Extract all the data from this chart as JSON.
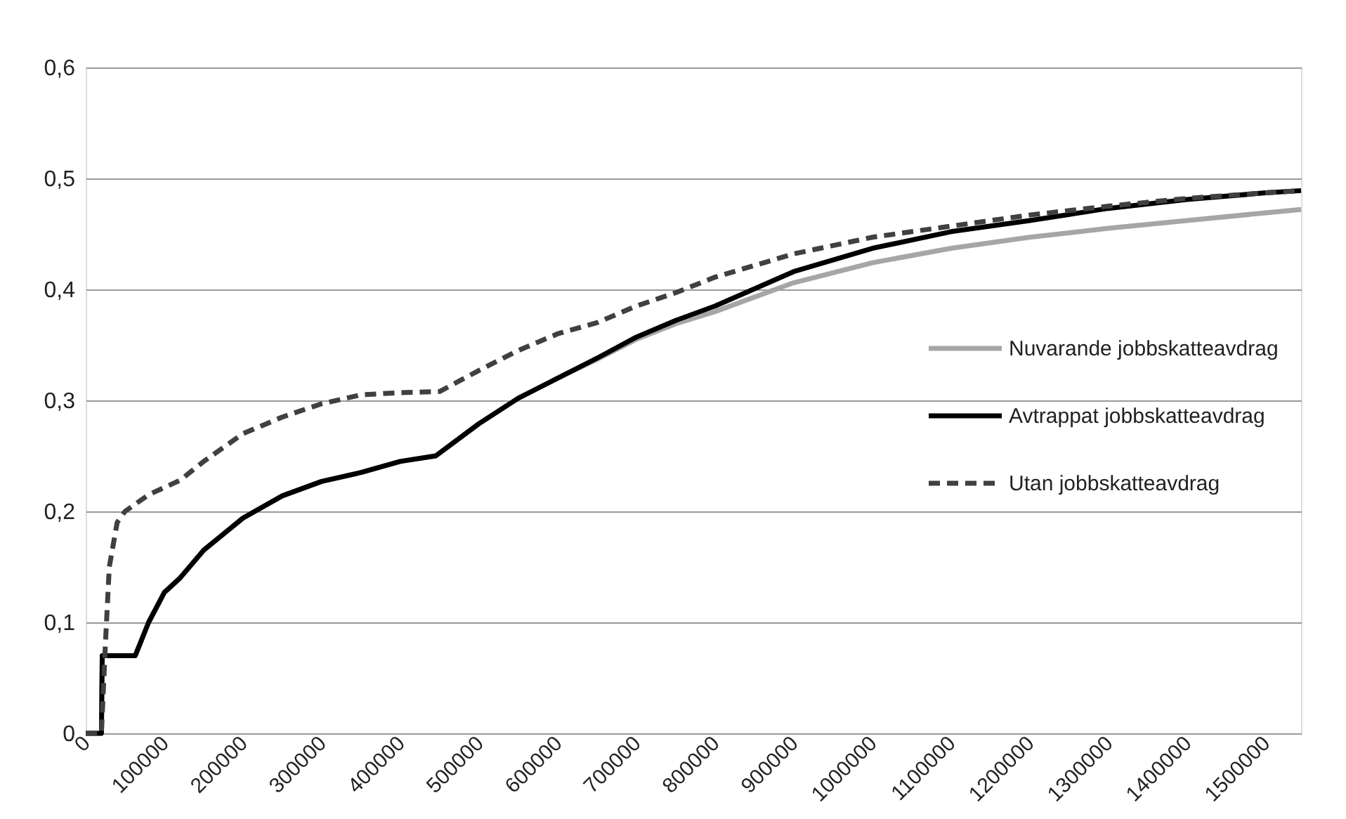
{
  "chart_data": {
    "type": "line",
    "xlim": [
      0,
      1545000
    ],
    "xticks": [
      0,
      100000,
      200000,
      300000,
      400000,
      500000,
      600000,
      700000,
      800000,
      900000,
      1000000,
      1100000,
      1200000,
      1300000,
      1400000,
      1500000
    ],
    "ylim": [
      0,
      0.6
    ],
    "yticks": [
      {
        "value": 0,
        "label": "0"
      },
      {
        "value": 0.1,
        "label": "0,1"
      },
      {
        "value": 0.2,
        "label": "0,2"
      },
      {
        "value": 0.3,
        "label": "0,3"
      },
      {
        "value": 0.4,
        "label": "0,4"
      },
      {
        "value": 0.5,
        "label": "0,5"
      },
      {
        "value": 0.6,
        "label": "0,6"
      }
    ],
    "grid": "y",
    "legend": "right",
    "marker": "none",
    "series": [
      {
        "name": "Nuvarande jobbskatteavdrag",
        "color": "#a6a6a6",
        "line_style": "solid",
        "x": [
          0,
          20000,
          21000,
          63000,
          80000,
          100000,
          120000,
          150000,
          200000,
          250000,
          300000,
          350000,
          400000,
          445000,
          500000,
          550000,
          600000,
          650000,
          700000,
          750000,
          800000,
          900000,
          1000000,
          1100000,
          1200000,
          1300000,
          1400000,
          1500000,
          1545000
        ],
        "values": [
          0,
          0,
          0.07,
          0.07,
          0.1,
          0.127,
          0.14,
          0.165,
          0.194,
          0.214,
          0.227,
          0.235,
          0.245,
          0.25,
          0.279,
          0.302,
          0.32,
          0.337,
          0.355,
          0.369,
          0.38,
          0.406,
          0.424,
          0.437,
          0.447,
          0.455,
          0.462,
          0.469,
          0.472
        ]
      },
      {
        "name": "Avtrappat jobbskatteavdrag",
        "color": "#000000",
        "line_style": "solid",
        "x": [
          0,
          20000,
          21000,
          63000,
          80000,
          100000,
          120000,
          150000,
          200000,
          250000,
          300000,
          350000,
          400000,
          445000,
          500000,
          550000,
          600000,
          650000,
          700000,
          750000,
          800000,
          900000,
          1000000,
          1100000,
          1200000,
          1300000,
          1400000,
          1500000,
          1545000
        ],
        "values": [
          0,
          0,
          0.07,
          0.07,
          0.1,
          0.127,
          0.14,
          0.165,
          0.194,
          0.214,
          0.227,
          0.235,
          0.245,
          0.25,
          0.279,
          0.302,
          0.32,
          0.338,
          0.357,
          0.372,
          0.385,
          0.416,
          0.437,
          0.452,
          0.462,
          0.473,
          0.481,
          0.487,
          0.489
        ]
      },
      {
        "name": "Utan jobbskatteavdrag",
        "color": "#404040",
        "line_style": "dashed",
        "x": [
          0,
          20000,
          25000,
          30000,
          40000,
          50000,
          80000,
          120000,
          150000,
          200000,
          250000,
          300000,
          350000,
          400000,
          450000,
          500000,
          550000,
          600000,
          650000,
          700000,
          750000,
          800000,
          900000,
          1000000,
          1100000,
          1200000,
          1300000,
          1400000,
          1500000,
          1545000
        ],
        "values": [
          0,
          0,
          0.08,
          0.15,
          0.19,
          0.2,
          0.215,
          0.228,
          0.245,
          0.27,
          0.285,
          0.297,
          0.305,
          0.307,
          0.308,
          0.327,
          0.345,
          0.36,
          0.37,
          0.385,
          0.397,
          0.411,
          0.432,
          0.447,
          0.457,
          0.467,
          0.475,
          0.482,
          0.487,
          0.489
        ]
      }
    ]
  }
}
